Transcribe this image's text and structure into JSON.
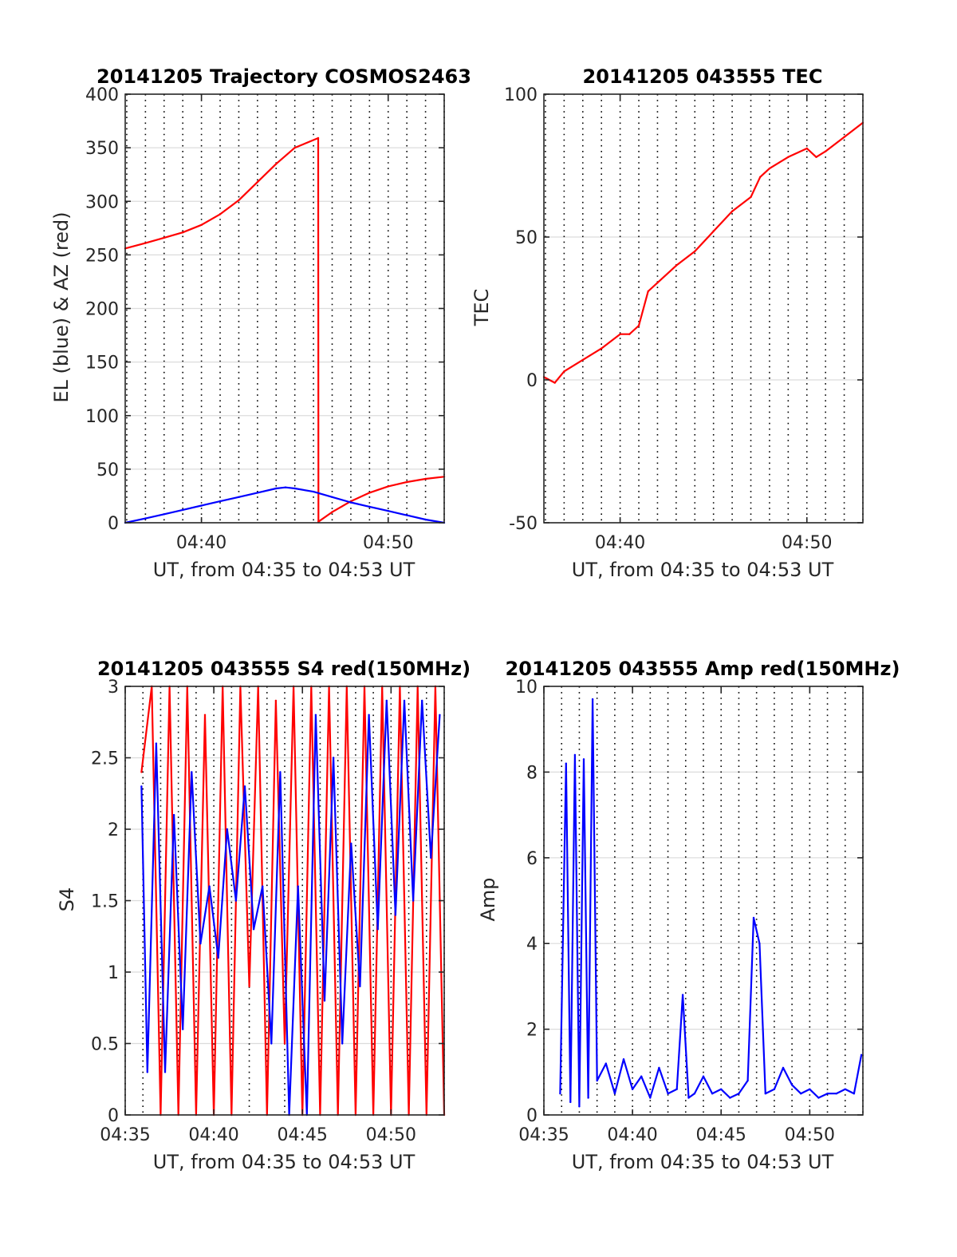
{
  "colors": {
    "el_line": "#0000ff",
    "az_line": "#ff0000",
    "tec_line": "#ff0000",
    "s4_red": "#ff0000",
    "s4_blue": "#0000ff",
    "amp_line": "#0000ff",
    "grid": "#000000",
    "axis": "#262626"
  },
  "chart_data": [
    {
      "type": "line",
      "title": "20141205 Trajectory COSMOS2463",
      "xlabel": "UT, from 04:35 to 04:53 UT",
      "ylabel": "EL (blue) & AZ (red)",
      "xlim": [
        "04:35:55",
        "04:53:00"
      ],
      "ylim": [
        0,
        400
      ],
      "yticks": [
        "0",
        "50",
        "100",
        "150",
        "200",
        "250",
        "300",
        "350",
        "400"
      ],
      "xticks": [
        "04:40",
        "04:50"
      ],
      "grid": "vertical dotted every minute, horizontal light",
      "series": [
        {
          "name": "AZ",
          "color": "red",
          "x": [
            "04:35:55",
            "04:37",
            "04:38",
            "04:39",
            "04:40",
            "04:41",
            "04:42",
            "04:43",
            "04:44",
            "04:45",
            "04:46:15",
            "04:46:16",
            "04:47",
            "04:48",
            "04:49",
            "04:50",
            "04:51",
            "04:52",
            "04:53"
          ],
          "values": [
            256,
            261,
            266,
            271,
            278,
            288,
            301,
            318,
            335,
            350,
            359,
            1,
            10,
            20,
            28,
            34,
            38,
            41,
            43
          ]
        },
        {
          "name": "EL",
          "color": "blue",
          "x": [
            "04:35:55",
            "04:37",
            "04:38",
            "04:39",
            "04:40",
            "04:41",
            "04:42",
            "04:43",
            "04:44",
            "04:44:30",
            "04:45",
            "04:46",
            "04:47",
            "04:48",
            "04:49",
            "04:50",
            "04:51",
            "04:52",
            "04:53"
          ],
          "values": [
            0,
            4,
            8,
            12,
            16,
            20,
            24,
            28,
            32,
            33,
            32,
            29,
            24,
            19,
            15,
            11,
            7,
            3,
            0
          ]
        }
      ]
    },
    {
      "type": "line",
      "title": "20141205 043555 TEC",
      "xlabel": "UT, from 04:35 to 04:53 UT",
      "ylabel": "TEC",
      "xlim": [
        "04:35:55",
        "04:53:00"
      ],
      "ylim": [
        -50,
        100
      ],
      "yticks": [
        "-50",
        "0",
        "50",
        "100"
      ],
      "xticks": [
        "04:40",
        "04:50"
      ],
      "series": [
        {
          "name": "TEC",
          "color": "red",
          "x": [
            "04:35:55",
            "04:36:30",
            "04:37",
            "04:38",
            "04:39",
            "04:40",
            "04:40:30",
            "04:41",
            "04:41:30",
            "04:42",
            "04:43",
            "04:44",
            "04:45",
            "04:46",
            "04:47",
            "04:47:30",
            "04:48",
            "04:49",
            "04:50",
            "04:50:30",
            "04:51",
            "04:52",
            "04:53"
          ],
          "values": [
            1,
            -1,
            3,
            7,
            11,
            16,
            16,
            19,
            31,
            34,
            40,
            45,
            52,
            59,
            64,
            71,
            74,
            78,
            81,
            78,
            80,
            85,
            90
          ]
        }
      ]
    },
    {
      "type": "line",
      "title": "20141205 043555 S4 red(150MHz)",
      "xlabel": "UT, from 04:35 to 04:53 UT",
      "ylabel": "S4",
      "xlim": [
        "04:35:00",
        "04:53:00"
      ],
      "ylim": [
        0,
        3
      ],
      "yticks": [
        "0",
        "0.5",
        "1",
        "1.5",
        "2",
        "2.5",
        "3"
      ],
      "xticks": [
        "04:35",
        "04:40",
        "04:45",
        "04:50"
      ],
      "series": [
        {
          "name": "S4 red",
          "color": "red",
          "x": [
            "04:35:55",
            "04:36:30",
            "04:37",
            "04:37:30",
            "04:38",
            "04:38:30",
            "04:39",
            "04:39:30",
            "04:40",
            "04:40:30",
            "04:41",
            "04:41:30",
            "04:42",
            "04:42:30",
            "04:43",
            "04:43:30",
            "04:44",
            "04:44:30",
            "04:45",
            "04:45:30",
            "04:46",
            "04:46:30",
            "04:47",
            "04:47:30",
            "04:48",
            "04:48:30",
            "04:49",
            "04:49:30",
            "04:50",
            "04:50:30",
            "04:51",
            "04:51:30",
            "04:52",
            "04:52:30",
            "04:53"
          ],
          "values": [
            2.4,
            3.0,
            0.0,
            3.0,
            0.0,
            3.0,
            0.0,
            2.8,
            0.0,
            3.0,
            0.0,
            3.0,
            0.9,
            3.0,
            0.0,
            2.9,
            0.5,
            3.0,
            0.0,
            3.0,
            0.0,
            3.0,
            0.0,
            3.0,
            0.0,
            3.0,
            0.0,
            3.0,
            0.0,
            3.0,
            0.0,
            3.0,
            0.0,
            3.0,
            0.0
          ]
        },
        {
          "name": "S4 blue",
          "color": "blue",
          "x": [
            "04:35:55",
            "04:36:15",
            "04:36:45",
            "04:37:15",
            "04:37:45",
            "04:38:15",
            "04:38:45",
            "04:39:15",
            "04:39:45",
            "04:40:15",
            "04:40:45",
            "04:41:15",
            "04:41:45",
            "04:42:15",
            "04:42:45",
            "04:43:15",
            "04:43:45",
            "04:44:15",
            "04:44:45",
            "04:45:15",
            "04:45:45",
            "04:46:15",
            "04:46:45",
            "04:47:15",
            "04:47:45",
            "04:48:15",
            "04:48:45",
            "04:49:15",
            "04:49:45",
            "04:50:15",
            "04:50:45",
            "04:51:15",
            "04:51:45",
            "04:52:15",
            "04:52:45"
          ],
          "values": [
            2.3,
            0.3,
            2.6,
            0.3,
            2.1,
            0.6,
            2.4,
            1.2,
            1.6,
            1.1,
            2.0,
            1.5,
            2.3,
            1.3,
            1.6,
            0.5,
            2.4,
            0.0,
            1.6,
            0.0,
            2.8,
            0.8,
            2.5,
            0.5,
            1.9,
            0.9,
            2.8,
            1.3,
            2.9,
            1.4,
            2.9,
            1.5,
            2.9,
            1.8,
            2.8
          ]
        }
      ]
    },
    {
      "type": "line",
      "title": "20141205 043555 Amp red(150MHz)",
      "xlabel": "UT, from 04:35 to 04:53 UT",
      "ylabel": "Amp",
      "xlim": [
        "04:35:00",
        "04:53:00"
      ],
      "ylim": [
        0,
        10
      ],
      "yticks": [
        "0",
        "2",
        "4",
        "6",
        "8",
        "10"
      ],
      "xticks": [
        "04:35",
        "04:40",
        "04:45",
        "04:50"
      ],
      "series": [
        {
          "name": "Amp",
          "color": "blue",
          "x": [
            "04:35:55",
            "04:36:15",
            "04:36:30",
            "04:36:45",
            "04:37",
            "04:37:15",
            "04:37:30",
            "04:37:45",
            "04:38",
            "04:38:30",
            "04:39",
            "04:39:30",
            "04:40",
            "04:40:30",
            "04:41",
            "04:41:30",
            "04:42",
            "04:42:30",
            "04:42:50",
            "04:43:10",
            "04:43:30",
            "04:44",
            "04:44:30",
            "04:45",
            "04:45:30",
            "04:46",
            "04:46:30",
            "04:46:50",
            "04:47:10",
            "04:47:30",
            "04:48",
            "04:48:30",
            "04:49",
            "04:49:30",
            "04:50",
            "04:50:30",
            "04:51",
            "04:51:30",
            "04:52",
            "04:52:30",
            "04:52:55"
          ],
          "values": [
            0.5,
            8.2,
            0.3,
            8.4,
            0.2,
            8.3,
            0.4,
            9.7,
            0.8,
            1.2,
            0.5,
            1.3,
            0.6,
            0.9,
            0.4,
            1.1,
            0.5,
            0.6,
            2.8,
            0.4,
            0.5,
            0.9,
            0.5,
            0.6,
            0.4,
            0.5,
            0.8,
            4.6,
            4.0,
            0.5,
            0.6,
            1.1,
            0.7,
            0.5,
            0.6,
            0.4,
            0.5,
            0.5,
            0.6,
            0.5,
            1.4
          ]
        }
      ]
    }
  ]
}
